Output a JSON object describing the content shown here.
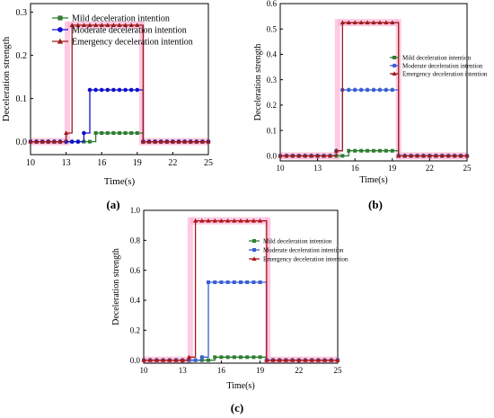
{
  "chart_data": [
    {
      "type": "line",
      "panel_label": "(a)",
      "xlabel": "Time(s)",
      "ylabel": "Deceleration strength",
      "xlim": [
        10,
        25
      ],
      "ylim": [
        -0.03,
        0.32
      ],
      "xticks": [
        10,
        13,
        16,
        19,
        22,
        25
      ],
      "yticks": [
        0.0,
        0.1,
        0.2,
        0.3
      ],
      "ytick_decimals": 1,
      "legend_position": "top",
      "highlight_color": "#ffb3d9",
      "highlight_regions": [
        {
          "x0": 13.1,
          "x1": 19.4,
          "y": 0.27
        },
        {
          "x0": 10.0,
          "x1": 13.1,
          "y": 0.0
        },
        {
          "x0": 19.4,
          "x1": 25.0,
          "y": 0.0
        }
      ],
      "series": [
        {
          "name": "Mild deceleration intention",
          "color": "#2e7d32",
          "marker": "square",
          "x": [
            10,
            10.5,
            11,
            11.5,
            12,
            12.5,
            13,
            13.5,
            14,
            14.5,
            15,
            15.5,
            16,
            16.5,
            17,
            17.5,
            18,
            18.5,
            19,
            19.5,
            20,
            20.5,
            21,
            21.5,
            22,
            22.5,
            23,
            23.5,
            24,
            24.5,
            25
          ],
          "y": [
            0,
            0,
            0,
            0,
            0,
            0,
            0,
            0,
            0,
            0,
            0,
            0.02,
            0.02,
            0.02,
            0.02,
            0.02,
            0.02,
            0.02,
            0.02,
            0,
            0,
            0,
            0,
            0,
            0,
            0,
            0,
            0,
            0,
            0,
            0
          ]
        },
        {
          "name": "Moderate deceleration intention",
          "color": "#1010cc",
          "marker": "circle",
          "x": [
            10,
            10.5,
            11,
            11.5,
            12,
            12.5,
            13,
            13.5,
            14,
            14.5,
            15,
            15.5,
            16,
            16.5,
            17,
            17.5,
            18,
            18.5,
            19,
            19.5,
            20,
            20.5,
            21,
            21.5,
            22,
            22.5,
            23,
            23.5,
            24,
            24.5,
            25
          ],
          "y": [
            0,
            0,
            0,
            0,
            0,
            0,
            0,
            0,
            0,
            0.02,
            0.12,
            0.12,
            0.12,
            0.12,
            0.12,
            0.12,
            0.12,
            0.12,
            0.12,
            0,
            0,
            0,
            0,
            0,
            0,
            0,
            0,
            0,
            0,
            0,
            0
          ]
        },
        {
          "name": "Emergency deceleration intention",
          "color": "#9b1b1b",
          "marker": "triangle",
          "x": [
            10,
            10.5,
            11,
            11.5,
            12,
            12.5,
            13,
            13.5,
            14,
            14.5,
            15,
            15.5,
            16,
            16.5,
            17,
            17.5,
            18,
            18.5,
            19,
            19.5,
            20,
            20.5,
            21,
            21.5,
            22,
            22.5,
            23,
            23.5,
            24,
            24.5,
            25
          ],
          "y": [
            0,
            0,
            0,
            0,
            0,
            0,
            0.02,
            0.27,
            0.27,
            0.27,
            0.27,
            0.27,
            0.27,
            0.27,
            0.27,
            0.27,
            0.27,
            0.27,
            0.27,
            0,
            0,
            0,
            0,
            0,
            0,
            0,
            0,
            0,
            0,
            0,
            0
          ]
        }
      ]
    },
    {
      "type": "line",
      "panel_label": "(b)",
      "xlabel": "Time(s)",
      "ylabel": "Deceleration strength",
      "xlim": [
        10,
        25
      ],
      "ylim": [
        -0.02,
        0.6
      ],
      "xticks": [
        10,
        13,
        16,
        19,
        22,
        25
      ],
      "yticks": [
        0.0,
        0.1,
        0.2,
        0.3,
        0.4,
        0.5,
        0.6
      ],
      "ytick_decimals": 1,
      "legend_position": "right",
      "highlight_color": "#ffb3d9",
      "highlight_regions": [
        {
          "x0": 14.6,
          "x1": 19.5,
          "y": 0.525
        },
        {
          "x0": 10.0,
          "x1": 14.6,
          "y": 0.0
        },
        {
          "x0": 19.5,
          "x1": 25.0,
          "y": 0.0
        }
      ],
      "series": [
        {
          "name": "Mild deceleration intention",
          "color": "#2e7d32",
          "marker": "square",
          "x": [
            10,
            10.5,
            11,
            11.5,
            12,
            12.5,
            13,
            13.5,
            14,
            14.5,
            15,
            15.5,
            16,
            16.5,
            17,
            17.5,
            18,
            18.5,
            19,
            19.5,
            20,
            20.5,
            21,
            21.5,
            22,
            22.5,
            23,
            23.5,
            24,
            24.5,
            25
          ],
          "y": [
            0,
            0,
            0,
            0,
            0,
            0,
            0,
            0,
            0,
            0,
            0,
            0.02,
            0.02,
            0.02,
            0.02,
            0.02,
            0.02,
            0.02,
            0.02,
            0,
            0,
            0,
            0,
            0,
            0,
            0,
            0,
            0,
            0,
            0,
            0
          ]
        },
        {
          "name": "Moderate deceleration intention",
          "color": "#3a5fd0",
          "marker": "circle",
          "x": [
            10,
            10.5,
            11,
            11.5,
            12,
            12.5,
            13,
            13.5,
            14,
            14.5,
            15,
            15.5,
            16,
            16.5,
            17,
            17.5,
            18,
            18.5,
            19,
            19.5,
            20,
            20.5,
            21,
            21.5,
            22,
            22.5,
            23,
            23.5,
            24,
            24.5,
            25
          ],
          "y": [
            0,
            0,
            0,
            0,
            0,
            0,
            0,
            0,
            0,
            0.02,
            0.26,
            0.26,
            0.26,
            0.26,
            0.26,
            0.26,
            0.26,
            0.26,
            0.26,
            0,
            0,
            0,
            0,
            0,
            0,
            0,
            0,
            0,
            0,
            0,
            0
          ]
        },
        {
          "name": "Emergency deceleration intention",
          "color": "#9b1b1b",
          "marker": "triangle",
          "x": [
            10,
            10.5,
            11,
            11.5,
            12,
            12.5,
            13,
            13.5,
            14,
            14.5,
            15,
            15.5,
            16,
            16.5,
            17,
            17.5,
            18,
            18.5,
            19,
            19.5,
            20,
            20.5,
            21,
            21.5,
            22,
            22.5,
            23,
            23.5,
            24,
            24.5,
            25
          ],
          "y": [
            0,
            0,
            0,
            0,
            0,
            0,
            0,
            0,
            0,
            0.02,
            0.525,
            0.525,
            0.525,
            0.525,
            0.525,
            0.525,
            0.525,
            0.525,
            0.525,
            0,
            0,
            0,
            0,
            0,
            0,
            0,
            0,
            0,
            0,
            0,
            0
          ]
        }
      ]
    },
    {
      "type": "line",
      "panel_label": "(c)",
      "xlabel": "Time(s)",
      "ylabel": "Deceleration strength",
      "xlim": [
        10,
        25
      ],
      "ylim": [
        -0.02,
        1.0
      ],
      "xticks": [
        10,
        13,
        16,
        19,
        22,
        25
      ],
      "yticks": [
        0.0,
        0.2,
        0.4,
        0.6,
        0.8,
        1.0
      ],
      "ytick_decimals": 1,
      "legend_position": "right",
      "highlight_color": "#ffb3d9",
      "highlight_regions": [
        {
          "x0": 13.6,
          "x1": 19.6,
          "y": 0.93
        },
        {
          "x0": 10.0,
          "x1": 13.6,
          "y": 0.0
        },
        {
          "x0": 19.6,
          "x1": 25.0,
          "y": 0.0
        }
      ],
      "series": [
        {
          "name": "Mild deceleration intention",
          "color": "#2e7d32",
          "marker": "square",
          "x": [
            10,
            10.5,
            11,
            11.5,
            12,
            12.5,
            13,
            13.5,
            14,
            14.5,
            15,
            15.5,
            16,
            16.5,
            17,
            17.5,
            18,
            18.5,
            19,
            19.5,
            20,
            20.5,
            21,
            21.5,
            22,
            22.5,
            23,
            23.5,
            24,
            24.5,
            25
          ],
          "y": [
            0,
            0,
            0,
            0,
            0,
            0,
            0,
            0,
            0,
            0,
            0,
            0.02,
            0.02,
            0.02,
            0.02,
            0.02,
            0.02,
            0.02,
            0.02,
            0,
            0,
            0,
            0,
            0,
            0,
            0,
            0,
            0,
            0,
            0,
            0
          ]
        },
        {
          "name": "Moderate deceleration intention",
          "color": "#3a5fd0",
          "marker": "square",
          "x": [
            10,
            10.5,
            11,
            11.5,
            12,
            12.5,
            13,
            13.5,
            14,
            14.5,
            15,
            15.5,
            16,
            16.5,
            17,
            17.5,
            18,
            18.5,
            19,
            19.5,
            20,
            20.5,
            21,
            21.5,
            22,
            22.5,
            23,
            23.5,
            24,
            24.5,
            25
          ],
          "y": [
            0,
            0,
            0,
            0,
            0,
            0,
            0,
            0,
            0,
            0.02,
            0.52,
            0.52,
            0.52,
            0.52,
            0.52,
            0.52,
            0.52,
            0.52,
            0.52,
            0,
            0,
            0,
            0,
            0,
            0,
            0,
            0,
            0,
            0,
            0,
            0
          ]
        },
        {
          "name": "Emergency deceleration intention",
          "color": "#b01818",
          "marker": "triangle",
          "x": [
            10,
            10.5,
            11,
            11.5,
            12,
            12.5,
            13,
            13.5,
            14,
            14.5,
            15,
            15.5,
            16,
            16.5,
            17,
            17.5,
            18,
            18.5,
            19,
            19.5,
            20,
            20.5,
            21,
            21.5,
            22,
            22.5,
            23,
            23.5,
            24,
            24.5,
            25
          ],
          "y": [
            0,
            0,
            0,
            0,
            0,
            0,
            0,
            0.02,
            0.93,
            0.93,
            0.93,
            0.93,
            0.93,
            0.93,
            0.93,
            0.93,
            0.93,
            0.93,
            0.93,
            0,
            0,
            0,
            0,
            0,
            0,
            0,
            0,
            0,
            0,
            0,
            0
          ]
        }
      ]
    }
  ]
}
